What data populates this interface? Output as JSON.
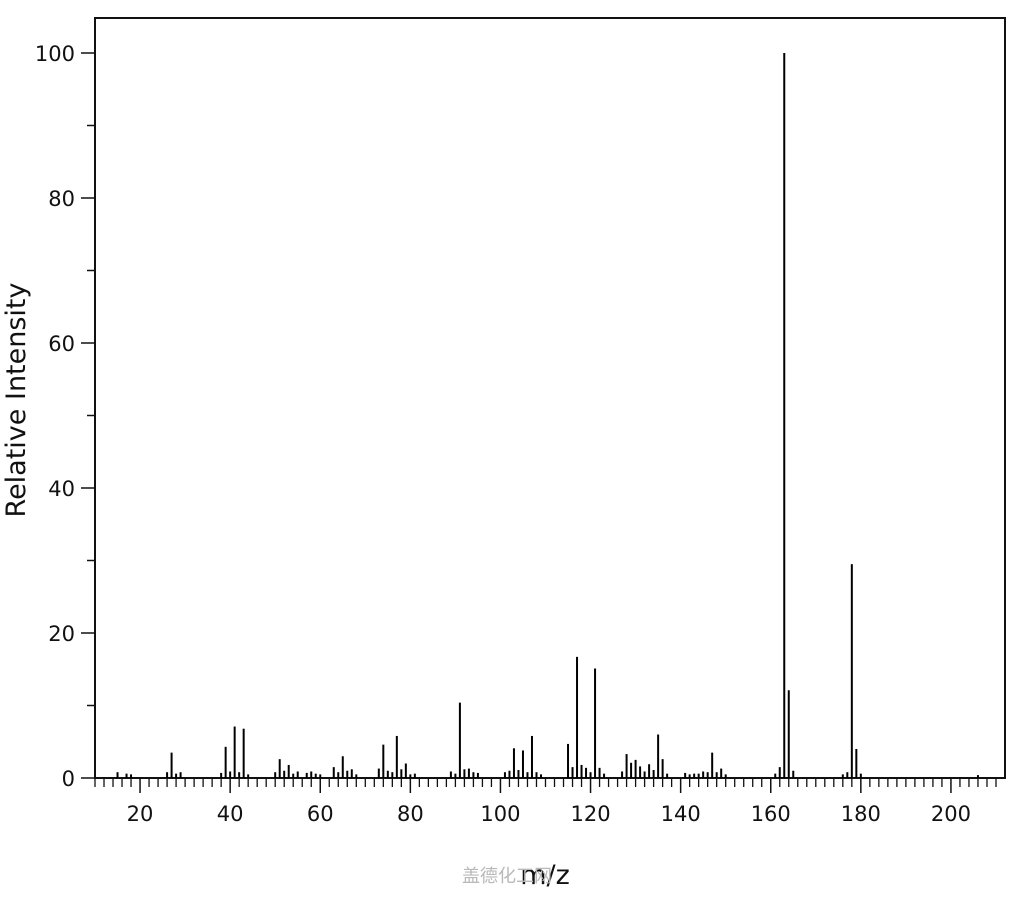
{
  "chart_data": {
    "type": "bar",
    "subtype": "mass-spectrum-stick",
    "title": "",
    "xlabel": "m/z",
    "ylabel": "Relative Intensity",
    "xlim": [
      10,
      212
    ],
    "ylim": [
      0,
      105
    ],
    "x_ticks": [
      20,
      40,
      60,
      80,
      100,
      120,
      140,
      160,
      180,
      200
    ],
    "y_ticks": [
      0,
      20,
      40,
      60,
      80,
      100
    ],
    "grid": false,
    "peaks": [
      {
        "mz": 15,
        "intensity": 0.8
      },
      {
        "mz": 17,
        "intensity": 0.6
      },
      {
        "mz": 18,
        "intensity": 0.5
      },
      {
        "mz": 26,
        "intensity": 0.8
      },
      {
        "mz": 27,
        "intensity": 3.5
      },
      {
        "mz": 28,
        "intensity": 0.6
      },
      {
        "mz": 29,
        "intensity": 0.8
      },
      {
        "mz": 38,
        "intensity": 0.7
      },
      {
        "mz": 39,
        "intensity": 4.3
      },
      {
        "mz": 40,
        "intensity": 0.9
      },
      {
        "mz": 41,
        "intensity": 7.1
      },
      {
        "mz": 42,
        "intensity": 0.8
      },
      {
        "mz": 43,
        "intensity": 6.8
      },
      {
        "mz": 44,
        "intensity": 0.5
      },
      {
        "mz": 50,
        "intensity": 0.8
      },
      {
        "mz": 51,
        "intensity": 2.6
      },
      {
        "mz": 52,
        "intensity": 1.0
      },
      {
        "mz": 53,
        "intensity": 1.8
      },
      {
        "mz": 54,
        "intensity": 0.6
      },
      {
        "mz": 55,
        "intensity": 0.9
      },
      {
        "mz": 57,
        "intensity": 0.7
      },
      {
        "mz": 58,
        "intensity": 0.9
      },
      {
        "mz": 59,
        "intensity": 0.6
      },
      {
        "mz": 60,
        "intensity": 0.5
      },
      {
        "mz": 63,
        "intensity": 1.5
      },
      {
        "mz": 64,
        "intensity": 0.8
      },
      {
        "mz": 65,
        "intensity": 3.0
      },
      {
        "mz": 66,
        "intensity": 1.0
      },
      {
        "mz": 67,
        "intensity": 1.2
      },
      {
        "mz": 68,
        "intensity": 0.5
      },
      {
        "mz": 73,
        "intensity": 1.3
      },
      {
        "mz": 74,
        "intensity": 4.6
      },
      {
        "mz": 75,
        "intensity": 1.0
      },
      {
        "mz": 76,
        "intensity": 0.8
      },
      {
        "mz": 77,
        "intensity": 5.8
      },
      {
        "mz": 78,
        "intensity": 1.2
      },
      {
        "mz": 79,
        "intensity": 2.0
      },
      {
        "mz": 80,
        "intensity": 0.5
      },
      {
        "mz": 81,
        "intensity": 0.6
      },
      {
        "mz": 89,
        "intensity": 0.9
      },
      {
        "mz": 90,
        "intensity": 0.6
      },
      {
        "mz": 91,
        "intensity": 10.4
      },
      {
        "mz": 92,
        "intensity": 1.2
      },
      {
        "mz": 93,
        "intensity": 1.3
      },
      {
        "mz": 94,
        "intensity": 0.8
      },
      {
        "mz": 95,
        "intensity": 0.7
      },
      {
        "mz": 101,
        "intensity": 0.8
      },
      {
        "mz": 102,
        "intensity": 1.0
      },
      {
        "mz": 103,
        "intensity": 4.1
      },
      {
        "mz": 104,
        "intensity": 1.1
      },
      {
        "mz": 105,
        "intensity": 3.8
      },
      {
        "mz": 106,
        "intensity": 0.8
      },
      {
        "mz": 107,
        "intensity": 5.8
      },
      {
        "mz": 108,
        "intensity": 0.8
      },
      {
        "mz": 109,
        "intensity": 0.5
      },
      {
        "mz": 115,
        "intensity": 4.7
      },
      {
        "mz": 116,
        "intensity": 1.5
      },
      {
        "mz": 117,
        "intensity": 16.7
      },
      {
        "mz": 118,
        "intensity": 1.8
      },
      {
        "mz": 119,
        "intensity": 1.4
      },
      {
        "mz": 120,
        "intensity": 0.8
      },
      {
        "mz": 121,
        "intensity": 15.1
      },
      {
        "mz": 122,
        "intensity": 1.4
      },
      {
        "mz": 123,
        "intensity": 0.6
      },
      {
        "mz": 127,
        "intensity": 0.9
      },
      {
        "mz": 128,
        "intensity": 3.3
      },
      {
        "mz": 129,
        "intensity": 2.1
      },
      {
        "mz": 130,
        "intensity": 2.5
      },
      {
        "mz": 131,
        "intensity": 1.6
      },
      {
        "mz": 132,
        "intensity": 0.9
      },
      {
        "mz": 133,
        "intensity": 1.9
      },
      {
        "mz": 134,
        "intensity": 1.1
      },
      {
        "mz": 135,
        "intensity": 6.0
      },
      {
        "mz": 136,
        "intensity": 2.6
      },
      {
        "mz": 137,
        "intensity": 0.6
      },
      {
        "mz": 141,
        "intensity": 0.7
      },
      {
        "mz": 142,
        "intensity": 0.5
      },
      {
        "mz": 143,
        "intensity": 0.6
      },
      {
        "mz": 144,
        "intensity": 0.6
      },
      {
        "mz": 145,
        "intensity": 0.9
      },
      {
        "mz": 146,
        "intensity": 0.8
      },
      {
        "mz": 147,
        "intensity": 3.5
      },
      {
        "mz": 148,
        "intensity": 0.8
      },
      {
        "mz": 149,
        "intensity": 1.3
      },
      {
        "mz": 150,
        "intensity": 0.5
      },
      {
        "mz": 161,
        "intensity": 0.6
      },
      {
        "mz": 162,
        "intensity": 1.5
      },
      {
        "mz": 163,
        "intensity": 100
      },
      {
        "mz": 164,
        "intensity": 12.1
      },
      {
        "mz": 165,
        "intensity": 1.0
      },
      {
        "mz": 176,
        "intensity": 0.5
      },
      {
        "mz": 177,
        "intensity": 0.8
      },
      {
        "mz": 178,
        "intensity": 29.5
      },
      {
        "mz": 179,
        "intensity": 4.0
      },
      {
        "mz": 180,
        "intensity": 0.6
      },
      {
        "mz": 206,
        "intensity": 0.4
      }
    ]
  },
  "watermark": {
    "text": "盖德化工网"
  },
  "colors": {
    "axis": "#111111",
    "peak": "#000000",
    "watermark": "#b9b9b9"
  }
}
